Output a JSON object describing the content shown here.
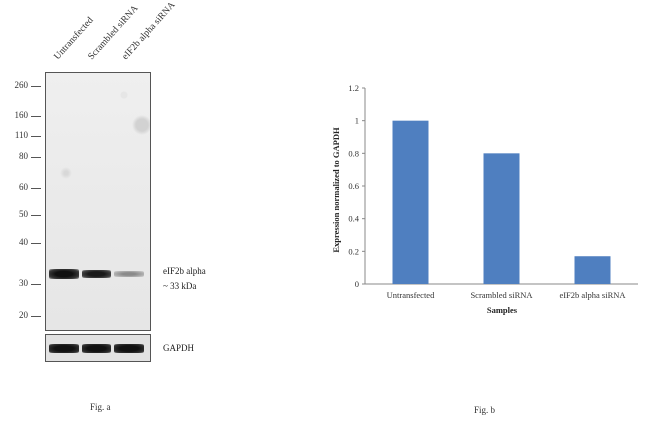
{
  "western_blot": {
    "lanes": [
      "Untransfected",
      "Scrambled siRNA",
      "eIF2b alpha siRNA"
    ],
    "mw_markers": [
      "260",
      "160",
      "110",
      "80",
      "60",
      "50",
      "40",
      "30",
      "20"
    ],
    "band_label_line1": "eIF2b alpha",
    "band_label_line2": "~ 33 kDa",
    "control_label": "GAPDH",
    "caption": "Fig. a",
    "band_intensity": [
      1.0,
      0.8,
      0.17
    ]
  },
  "chart_data": {
    "type": "bar",
    "categories": [
      "Untransfected",
      "Scrambled siRNA",
      "eIF2b alpha siRNA"
    ],
    "values": [
      1.0,
      0.8,
      0.17
    ],
    "ylabel": "Expression  normalized to GAPDH",
    "xlabel": "Samples",
    "ylim": [
      0,
      1.2
    ],
    "yticks": [
      "0",
      "0.2",
      "0.4",
      "0.6",
      "0.8",
      "1",
      "1.2"
    ],
    "bar_color": "#4f7fc0",
    "grid": false,
    "caption": "Fig. b"
  }
}
